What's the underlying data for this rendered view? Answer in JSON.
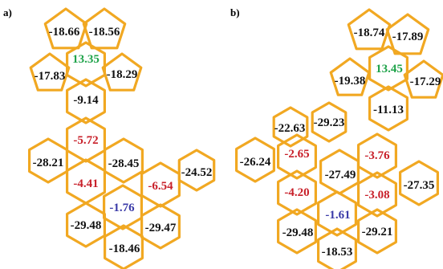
{
  "colors": {
    "bond": "#f1a822",
    "bond_dark": "#c9850f",
    "negative_outer": "#111111",
    "negative_inner": "#c8202a",
    "positive": "#1fa34a",
    "minimum": "#3a3aa8"
  },
  "panels": [
    {
      "label": "a)",
      "labels": [
        {
          "text": "-18.66",
          "c": "negative_outer"
        },
        {
          "text": "-18.56",
          "c": "negative_outer"
        },
        {
          "text": "13.35",
          "c": "positive"
        },
        {
          "text": "-17.83",
          "c": "negative_outer"
        },
        {
          "text": "-18.29",
          "c": "negative_outer"
        },
        {
          "text": "-9.14",
          "c": "negative_outer"
        },
        {
          "text": "-5.72",
          "c": "negative_inner"
        },
        {
          "text": "-28.21",
          "c": "negative_outer"
        },
        {
          "text": "-28.45",
          "c": "negative_outer"
        },
        {
          "text": "-24.52",
          "c": "negative_outer"
        },
        {
          "text": "-4.41",
          "c": "negative_inner"
        },
        {
          "text": "-6.54",
          "c": "negative_inner"
        },
        {
          "text": "-1.76",
          "c": "minimum"
        },
        {
          "text": "-29.48",
          "c": "negative_outer"
        },
        {
          "text": "-29.47",
          "c": "negative_outer"
        },
        {
          "text": "-18.46",
          "c": "negative_outer"
        }
      ]
    },
    {
      "label": "b)",
      "labels": [
        {
          "text": "-18.74",
          "c": "negative_outer"
        },
        {
          "text": "-17.89",
          "c": "negative_outer"
        },
        {
          "text": "13.45",
          "c": "positive"
        },
        {
          "text": "-19.38",
          "c": "negative_outer"
        },
        {
          "text": "-17.29",
          "c": "negative_outer"
        },
        {
          "text": "-11.13",
          "c": "negative_outer"
        },
        {
          "text": "-22.63",
          "c": "negative_outer"
        },
        {
          "text": "-29.23",
          "c": "negative_outer"
        },
        {
          "text": "-26.24",
          "c": "negative_outer"
        },
        {
          "text": "-2.65",
          "c": "negative_inner"
        },
        {
          "text": "-27.49",
          "c": "negative_outer"
        },
        {
          "text": "-3.76",
          "c": "negative_inner"
        },
        {
          "text": "-27.35",
          "c": "negative_outer"
        },
        {
          "text": "-4.20",
          "c": "negative_inner"
        },
        {
          "text": "-3.08",
          "c": "negative_inner"
        },
        {
          "text": "-1.61",
          "c": "minimum"
        },
        {
          "text": "-29.48",
          "c": "negative_outer"
        },
        {
          "text": "-29.21",
          "c": "negative_outer"
        },
        {
          "text": "-18.53",
          "c": "negative_outer"
        }
      ]
    }
  ]
}
